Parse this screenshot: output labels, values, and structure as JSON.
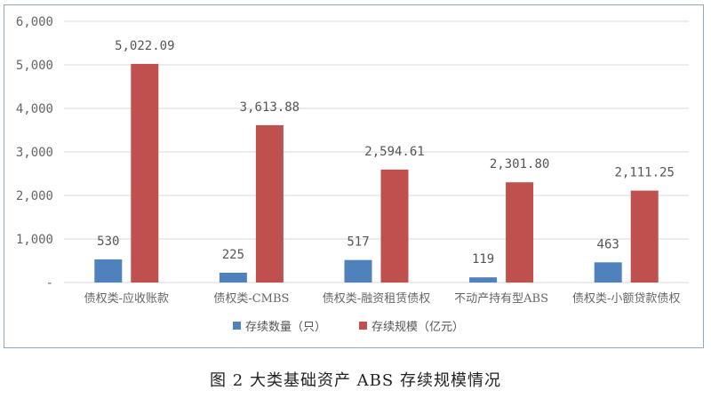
{
  "chart_data": {
    "type": "bar",
    "title": "",
    "caption": "图 2   大类基础资产 ABS 存续规模情况",
    "xlabel": "",
    "ylabel": "",
    "ylim": [
      0,
      6000
    ],
    "yticks": [
      0,
      1000,
      2000,
      3000,
      4000,
      5000,
      6000
    ],
    "ytick_labels": [
      "-",
      "1,000",
      "2,000",
      "3,000",
      "4,000",
      "5,000",
      "6,000"
    ],
    "grid": true,
    "legend_position": "bottom",
    "categories": [
      "债权类-应收账款",
      "债权类-CMBS",
      "债权类-融资租赁债权",
      "不动产持有型ABS",
      "债权类-小额贷款债权"
    ],
    "series": [
      {
        "name": "存续数量（只）",
        "color": "#4f81bd",
        "values": [
          530,
          225,
          517,
          119,
          463
        ],
        "labels": [
          "530",
          "225",
          "517",
          "119",
          "463"
        ]
      },
      {
        "name": "存续规模（亿元）",
        "color": "#c0504d",
        "values": [
          5022.09,
          3613.88,
          2594.61,
          2301.8,
          2111.25
        ],
        "labels": [
          "5,022.09",
          "3,613.88",
          "2,594.61",
          "2,301.80",
          "2,111.25"
        ]
      }
    ]
  }
}
